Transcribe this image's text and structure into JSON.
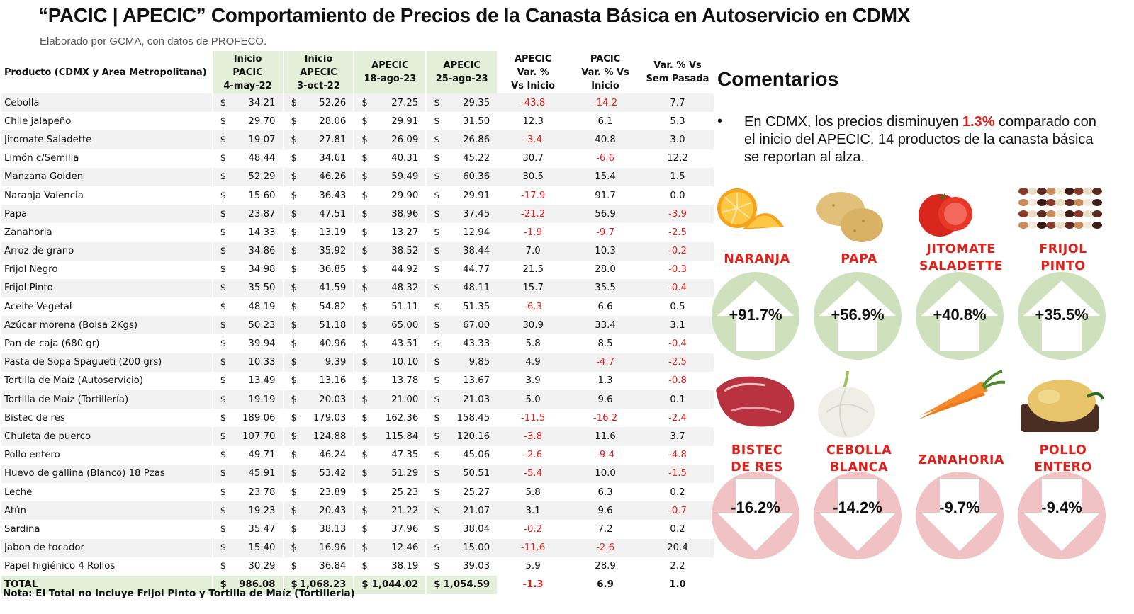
{
  "title": "“PACIC | APECIC” Comportamiento de Precios de la Canasta Básica en Autoservicio en CDMX",
  "subtitle": "Elaborado por GCMA, con datos de PROFECO.",
  "table": {
    "headers": {
      "product": "Producto (CDMX y Area Metropolitana)",
      "c1": [
        "Inicio",
        "PACIC",
        "4-may-22"
      ],
      "c2": [
        "Inicio",
        "APECIC",
        "3-oct-22"
      ],
      "c3": [
        "APECIC",
        "18-ago-23"
      ],
      "c4": [
        "APECIC",
        "25-ago-23"
      ],
      "c5": [
        "APECIC",
        "Var. %",
        "Vs  Inicio"
      ],
      "c6": [
        "PACIC",
        "Var. % Vs",
        "Inicio"
      ],
      "c7": [
        "Var. % Vs",
        "Sem Pasada"
      ]
    },
    "currency": "$",
    "rows": [
      {
        "name": "Cebolla",
        "p1": "34.21",
        "p2": "52.26",
        "p3": "27.25",
        "p4": "29.35",
        "v1": "-43.8",
        "v2": "-14.2",
        "v3": "7.7"
      },
      {
        "name": "Chile jalapeño",
        "p1": "29.70",
        "p2": "28.06",
        "p3": "29.91",
        "p4": "31.50",
        "v1": "12.3",
        "v2": "6.1",
        "v3": "5.3"
      },
      {
        "name": "Jitomate Saladette",
        "p1": "19.07",
        "p2": "27.81",
        "p3": "26.09",
        "p4": "26.86",
        "v1": "-3.4",
        "v2": "40.8",
        "v3": "3.0"
      },
      {
        "name": "Limón c/Semilla",
        "p1": "48.44",
        "p2": "34.61",
        "p3": "40.31",
        "p4": "45.22",
        "v1": "30.7",
        "v2": "-6.6",
        "v3": "12.2"
      },
      {
        "name": "Manzana Golden",
        "p1": "52.29",
        "p2": "46.26",
        "p3": "59.49",
        "p4": "60.36",
        "v1": "30.5",
        "v2": "15.4",
        "v3": "1.5"
      },
      {
        "name": "Naranja Valencia",
        "p1": "15.60",
        "p2": "36.43",
        "p3": "29.90",
        "p4": "29.91",
        "v1": "-17.9",
        "v2": "91.7",
        "v3": "0.0"
      },
      {
        "name": "Papa",
        "p1": "23.87",
        "p2": "47.51",
        "p3": "38.96",
        "p4": "37.45",
        "v1": "-21.2",
        "v2": "56.9",
        "v3": "-3.9"
      },
      {
        "name": "Zanahoria",
        "p1": "14.33",
        "p2": "13.19",
        "p3": "13.27",
        "p4": "12.94",
        "v1": "-1.9",
        "v2": "-9.7",
        "v3": "-2.5"
      },
      {
        "name": "Arroz de grano",
        "p1": "34.86",
        "p2": "35.92",
        "p3": "38.52",
        "p4": "38.44",
        "v1": "7.0",
        "v2": "10.3",
        "v3": "-0.2"
      },
      {
        "name": "Frijol Negro",
        "p1": "34.98",
        "p2": "36.85",
        "p3": "44.92",
        "p4": "44.77",
        "v1": "21.5",
        "v2": "28.0",
        "v3": "-0.3"
      },
      {
        "name": "Frijol Pinto",
        "p1": "35.50",
        "p2": "41.59",
        "p3": "48.32",
        "p4": "48.11",
        "v1": "15.7",
        "v2": "35.5",
        "v3": "-0.4"
      },
      {
        "name": "Aceite Vegetal",
        "p1": "48.19",
        "p2": "54.82",
        "p3": "51.11",
        "p4": "51.35",
        "v1": "-6.3",
        "v2": "6.6",
        "v3": "0.5"
      },
      {
        "name": "Azúcar morena (Bolsa 2Kgs)",
        "p1": "50.23",
        "p2": "51.18",
        "p3": "65.00",
        "p4": "67.00",
        "v1": "30.9",
        "v2": "33.4",
        "v3": "3.1"
      },
      {
        "name": "Pan de caja (680 gr)",
        "p1": "39.94",
        "p2": "40.96",
        "p3": "43.51",
        "p4": "43.33",
        "v1": "5.8",
        "v2": "8.5",
        "v3": "-0.4"
      },
      {
        "name": "Pasta de Sopa Spagueti (200 grs)",
        "p1": "10.33",
        "p2": "9.39",
        "p3": "10.10",
        "p4": "9.85",
        "v1": "4.9",
        "v2": "-4.7",
        "v3": "-2.5"
      },
      {
        "name": "Tortilla de Maíz (Autoservicio)",
        "p1": "13.49",
        "p2": "13.16",
        "p3": "13.78",
        "p4": "13.67",
        "v1": "3.9",
        "v2": "1.3",
        "v3": "-0.8"
      },
      {
        "name": "Tortilla de Maíz (Tortillería)",
        "p1": "19.19",
        "p2": "20.03",
        "p3": "21.00",
        "p4": "21.03",
        "v1": "5.0",
        "v2": "9.6",
        "v3": "0.1"
      },
      {
        "name": "Bistec de res",
        "p1": "189.06",
        "p2": "179.03",
        "p3": "162.36",
        "p4": "158.45",
        "v1": "-11.5",
        "v2": "-16.2",
        "v3": "-2.4"
      },
      {
        "name": "Chuleta de puerco",
        "p1": "107.70",
        "p2": "124.88",
        "p3": "115.84",
        "p4": "120.16",
        "v1": "-3.8",
        "v2": "11.6",
        "v3": "3.7"
      },
      {
        "name": "Pollo entero",
        "p1": "49.71",
        "p2": "46.24",
        "p3": "47.35",
        "p4": "45.06",
        "v1": "-2.6",
        "v2": "-9.4",
        "v3": "-4.8"
      },
      {
        "name": "Huevo de gallina (Blanco) 18 Pzas",
        "p1": "45.91",
        "p2": "53.42",
        "p3": "51.29",
        "p4": "50.51",
        "v1": "-5.4",
        "v2": "10.0",
        "v3": "-1.5"
      },
      {
        "name": "Leche",
        "p1": "23.78",
        "p2": "23.89",
        "p3": "25.23",
        "p4": "25.27",
        "v1": "5.8",
        "v2": "6.3",
        "v3": "0.2"
      },
      {
        "name": "Atún",
        "p1": "19.23",
        "p2": "20.43",
        "p3": "21.22",
        "p4": "21.07",
        "v1": "3.1",
        "v2": "9.6",
        "v3": "-0.7"
      },
      {
        "name": "Sardina",
        "p1": "35.47",
        "p2": "38.13",
        "p3": "37.96",
        "p4": "38.04",
        "v1": "-0.2",
        "v2": "7.2",
        "v3": "0.2"
      },
      {
        "name": "Jabon de tocador",
        "p1": "15.40",
        "p2": "16.96",
        "p3": "12.46",
        "p4": "15.00",
        "v1": "-11.6",
        "v2": "-2.6",
        "v3": "20.4"
      },
      {
        "name": "Papel higiénico 4 Rollos",
        "p1": "30.29",
        "p2": "36.84",
        "p3": "38.19",
        "p4": "39.03",
        "v1": "5.9",
        "v2": "28.9",
        "v3": "2.2"
      }
    ],
    "total": {
      "name": "TOTAL",
      "p1": "986.08",
      "p2": "1,068.23",
      "p3": "1,044.02",
      "p4": "1,054.59",
      "v1": "-1.3",
      "v2": "6.9",
      "v3": "1.0"
    }
  },
  "nota": "Nota: El Total no Incluye Frijol Pinto y Tortilla de Maíz (Tortilleria)",
  "comentarios": {
    "title": "Comentarios",
    "bullet": "•",
    "text_before": "En CDMX, los precios disminuyen ",
    "highlight": "1.3%",
    "text_after": " comparado con el inicio del APECIC. 14 productos de la canasta básica se reportan al alza."
  },
  "cards": [
    {
      "label": [
        "NARANJA"
      ],
      "pct": "+91.7%",
      "dir": "up",
      "icon": "orange-icon"
    },
    {
      "label": [
        "PAPA"
      ],
      "pct": "+56.9%",
      "dir": "up",
      "icon": "potato-icon"
    },
    {
      "label": [
        "JITOMATE",
        "SALADETTE"
      ],
      "pct": "+40.8%",
      "dir": "up",
      "icon": "tomato-icon"
    },
    {
      "label": [
        "FRIJOL",
        "PINTO"
      ],
      "pct": "+35.5%",
      "dir": "up",
      "icon": "beans-icon"
    },
    {
      "label": [
        "BISTEC",
        "DE RES"
      ],
      "pct": "-16.2%",
      "dir": "down",
      "icon": "steak-icon"
    },
    {
      "label": [
        "CEBOLLA",
        "BLANCA"
      ],
      "pct": "-14.2%",
      "dir": "down",
      "icon": "onion-icon"
    },
    {
      "label": [
        "ZANAHORIA"
      ],
      "pct": "-9.7%",
      "dir": "down",
      "icon": "carrot-icon"
    },
    {
      "label": [
        "POLLO",
        "ENTERO"
      ],
      "pct": "-9.4%",
      "dir": "down",
      "icon": "chicken-icon"
    }
  ],
  "colors": {
    "negative": "#e0201b",
    "header_green": "#e3efd8",
    "up_circle": "#cfe0bd",
    "down_circle": "#f0c2c4",
    "label_red": "#e0201b"
  }
}
